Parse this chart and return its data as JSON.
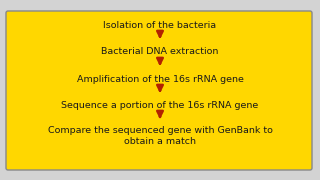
{
  "background_color": "#D3D3D3",
  "box_color": "#FFD700",
  "border_color": "#888888",
  "text_color": "#1a1a1a",
  "arrow_color": "#B22200",
  "steps": [
    "Isolation of the bacteria",
    "Bacterial DNA extraction",
    "Amplification of the 16s rRNA gene",
    "Sequence a portion of the 16s rRNA gene",
    "Compare the sequenced gene with GenBank to\nobtain a match"
  ],
  "font_size": 6.8,
  "fig_width": 3.2,
  "fig_height": 1.8,
  "dpi": 100
}
